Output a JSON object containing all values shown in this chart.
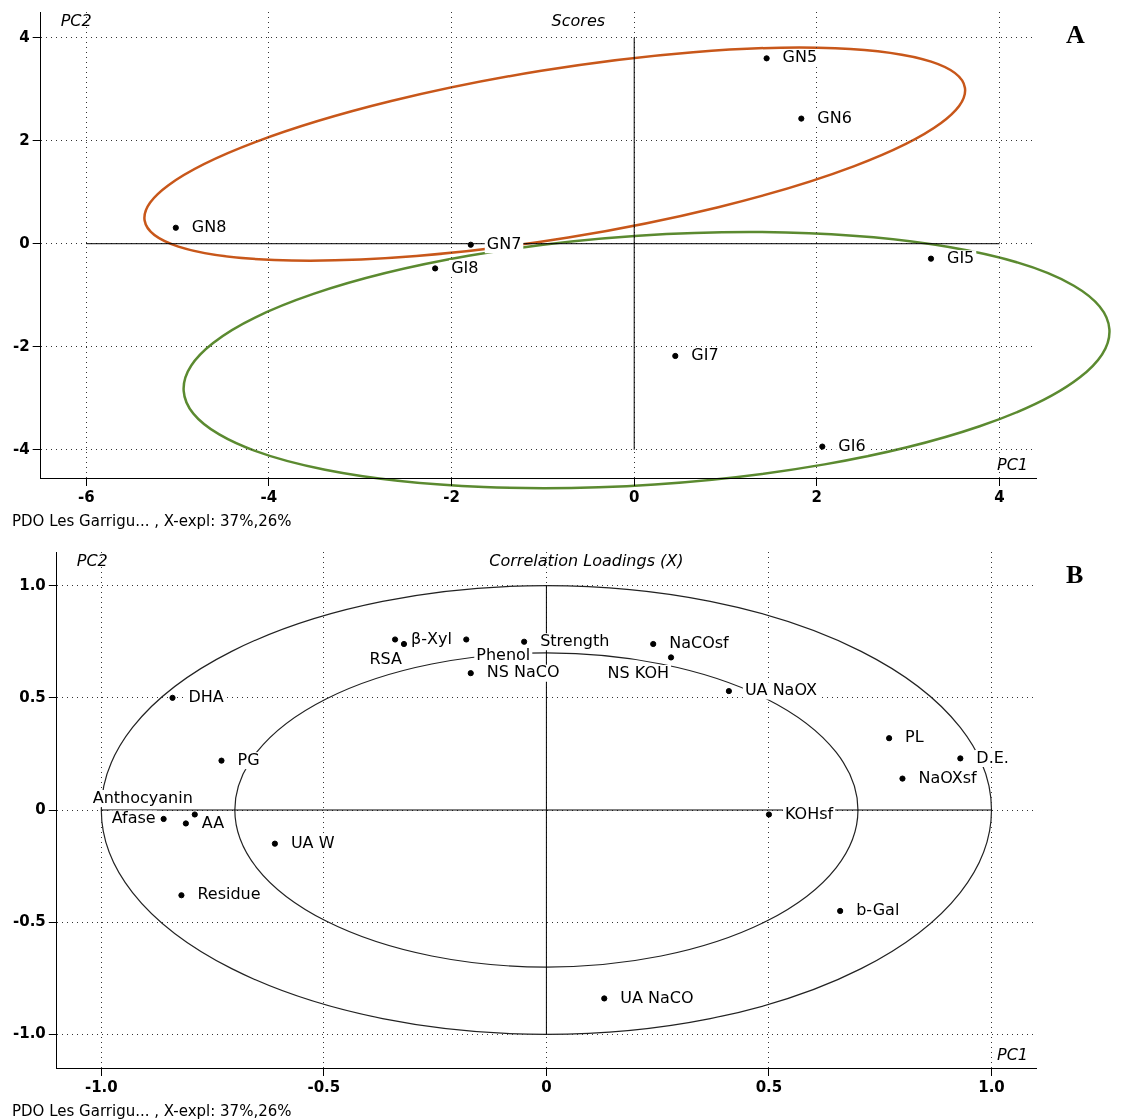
{
  "chart_data": [
    {
      "type": "scatter",
      "title": "Scores",
      "xlabel": "PC1",
      "ylabel": "PC2",
      "marker": "circle",
      "grid": true,
      "color": "#000000",
      "x": [
        1.45,
        1.83,
        -5.02,
        -1.79,
        -2.18,
        3.25,
        0.45,
        2.06
      ],
      "values": [
        3.6,
        2.43,
        0.31,
        -0.02,
        -0.48,
        -0.29,
        -2.18,
        -3.94
      ],
      "xlim": [
        -6.5,
        4.4
      ],
      "ylim": [
        -4.55,
        4.5
      ],
      "xticks": [
        -6,
        -4,
        -2,
        0,
        2,
        4
      ],
      "yticks": [
        -4,
        -2,
        0,
        2,
        4
      ],
      "annotations": [
        "A",
        "PDO Les Garrigu... , X-expl: 37%,26%",
        {
          "text": "GN5",
          "x": 1.45,
          "y": 3.6
        },
        {
          "text": "GN6",
          "x": 1.83,
          "y": 2.43
        },
        {
          "text": "GN8",
          "x": -5.02,
          "y": 0.31
        },
        {
          "text": "GN7",
          "x": -1.79,
          "y": -0.02
        },
        {
          "text": "GI8",
          "x": -2.18,
          "y": -0.48
        },
        {
          "text": "GI5",
          "x": 3.25,
          "y": -0.29
        },
        {
          "text": "GI7",
          "x": 0.45,
          "y": -2.18
        },
        {
          "text": "GI6",
          "x": 2.06,
          "y": -3.94
        }
      ]
    },
    {
      "type": "scatter",
      "title": "Correlation Loadings (X)",
      "xlabel": "PC1",
      "ylabel": "PC2",
      "marker": "circle",
      "grid": true,
      "color": "#000000",
      "x": [
        -0.34,
        -0.32,
        -0.18,
        -0.05,
        0.24,
        0.28,
        -0.17,
        0.41,
        -0.84,
        0.77,
        0.93,
        0.8,
        -0.73,
        0.5,
        -0.86,
        -0.81,
        -0.79,
        -0.61,
        -0.82,
        0.66,
        0.13
      ],
      "values": [
        0.76,
        0.74,
        0.76,
        0.75,
        0.74,
        0.68,
        0.61,
        0.53,
        0.5,
        0.32,
        0.23,
        0.14,
        0.22,
        -0.02,
        -0.04,
        -0.06,
        -0.02,
        -0.15,
        -0.38,
        -0.45,
        -0.84
      ],
      "xlim": [
        -1.1,
        1.1
      ],
      "ylim": [
        -1.15,
        1.15
      ],
      "xticks": [
        {
          "value": -1,
          "label": "-1.0"
        },
        {
          "value": -0.5,
          "label": "-0.5"
        },
        0,
        0.5,
        {
          "value": 1,
          "label": "1.0"
        }
      ],
      "yticks": [
        {
          "value": -1,
          "label": "-1.0"
        },
        {
          "value": -0.5,
          "label": "-0.5"
        },
        0,
        0.5,
        {
          "value": 1,
          "label": "1.0"
        }
      ],
      "annotations": [
        "B",
        "PDO Les Garrigu... , X-expl: 37%,26%",
        {
          "text": "β-Xyl",
          "x": -0.34,
          "y": 0.76
        },
        {
          "text": "RSA",
          "x": -0.32,
          "y": 0.74
        },
        {
          "text": "Phenol",
          "x": -0.18,
          "y": 0.76
        },
        {
          "text": "Strength",
          "x": -0.05,
          "y": 0.75
        },
        {
          "text": "NaCOsf",
          "x": 0.24,
          "y": 0.74
        },
        {
          "text": "NS KOH",
          "x": 0.28,
          "y": 0.68
        },
        {
          "text": "NS NaCO",
          "x": -0.17,
          "y": 0.61
        },
        {
          "text": "UA NaOX",
          "x": 0.41,
          "y": 0.53
        },
        {
          "text": "DHA",
          "x": -0.84,
          "y": 0.5
        },
        {
          "text": "PL",
          "x": 0.77,
          "y": 0.32
        },
        {
          "text": "D.E.",
          "x": 0.93,
          "y": 0.23
        },
        {
          "text": "NaOXsf",
          "x": 0.8,
          "y": 0.14
        },
        {
          "text": "PG",
          "x": -0.73,
          "y": 0.22
        },
        {
          "text": "KOHsf",
          "x": 0.5,
          "y": -0.02
        },
        {
          "text": "Afase",
          "x": -0.86,
          "y": -0.04
        },
        {
          "text": "AA",
          "x": -0.81,
          "y": -0.06
        },
        {
          "text": "Anthocyanin",
          "x": -0.79,
          "y": -0.02
        },
        {
          "text": "UA W",
          "x": -0.61,
          "y": -0.15
        },
        {
          "text": "Residue",
          "x": -0.82,
          "y": -0.38
        },
        {
          "text": "b-Gal",
          "x": 0.66,
          "y": -0.45
        },
        {
          "text": "UA NaCO",
          "x": 0.13,
          "y": -0.84
        }
      ]
    }
  ]
}
